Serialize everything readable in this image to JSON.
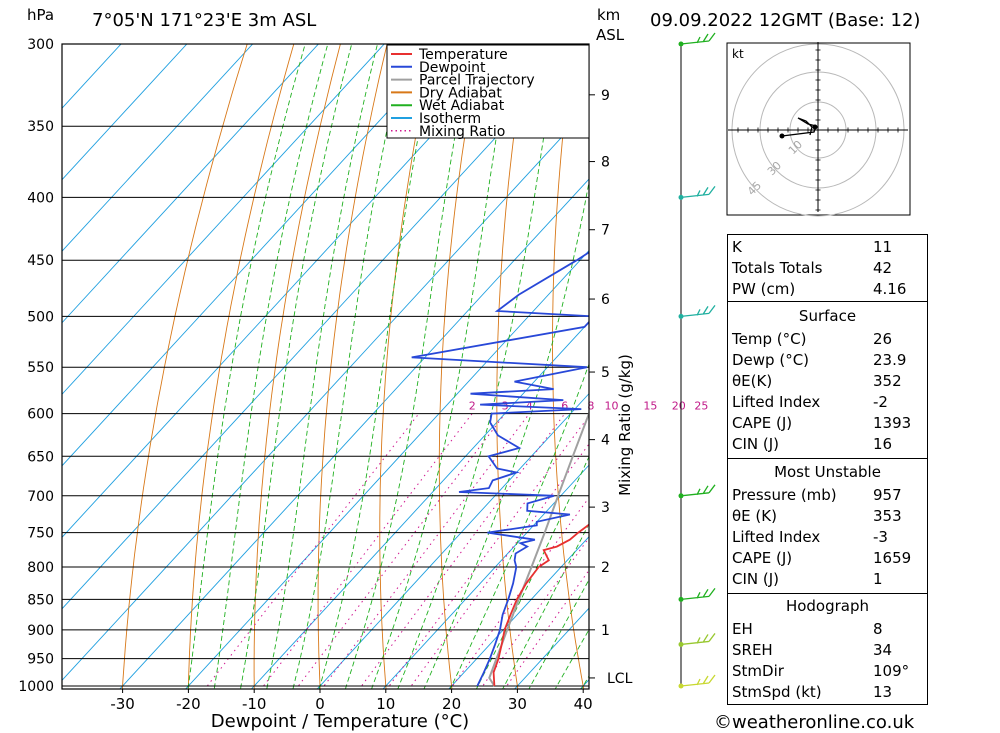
{
  "header": {
    "hpa_label": "hPa",
    "location": "7°05'N  171°23'E  3m  ASL",
    "km_label": "km",
    "asl_label": "ASL",
    "datetime": "09.09.2022  12GMT  (Base: 12)"
  },
  "chart_data": {
    "type": "skew-t",
    "xlabel": "Dewpoint / Temperature (°C)",
    "ylabel_right": "Mixing Ratio (g/kg)",
    "pressure_ticks": [
      300,
      350,
      400,
      450,
      500,
      550,
      600,
      650,
      700,
      750,
      800,
      850,
      900,
      950,
      1000
    ],
    "temperature_ticks": [
      -30,
      -20,
      -10,
      0,
      10,
      20,
      30,
      40
    ],
    "xlim": [
      -40,
      40
    ],
    "ylim": [
      1000,
      300
    ],
    "km_ticks": [
      {
        "label": "9",
        "p": 330
      },
      {
        "label": "8",
        "p": 374
      },
      {
        "label": "7",
        "p": 425
      },
      {
        "label": "6",
        "p": 484
      },
      {
        "label": "5",
        "p": 555
      },
      {
        "label": "4",
        "p": 630
      },
      {
        "label": "3",
        "p": 715
      },
      {
        "label": "2",
        "p": 800
      },
      {
        "label": "1",
        "p": 900
      },
      {
        "label": "LCL",
        "p": 985
      }
    ],
    "mixing_ratio_labels": [
      "2",
      "3",
      "4",
      "6",
      "8",
      "10",
      "15",
      "20",
      "25"
    ],
    "mixing_ratios": [
      1,
      2,
      3,
      4,
      6,
      8,
      10,
      15,
      20,
      25
    ],
    "legend": [
      {
        "name": "Temperature",
        "color": "#e83030",
        "style": "solid"
      },
      {
        "name": "Dewpoint",
        "color": "#2848d8",
        "style": "solid"
      },
      {
        "name": "Parcel Trajectory",
        "color": "#a0a0a0",
        "style": "solid"
      },
      {
        "name": "Dry Adiabat",
        "color": "#d87818",
        "style": "solid"
      },
      {
        "name": "Wet Adiabat",
        "color": "#20b020",
        "style": "solid"
      },
      {
        "name": "Isotherm",
        "color": "#20a0e0",
        "style": "solid"
      },
      {
        "name": "Mixing Ratio",
        "color": "#d01890",
        "style": "dotted"
      }
    ],
    "temperature": [
      [
        1000,
        26.5
      ],
      [
        975,
        24.5
      ],
      [
        950,
        23.3
      ],
      [
        925,
        21.8
      ],
      [
        900,
        20.2
      ],
      [
        875,
        19.0
      ],
      [
        850,
        17.8
      ],
      [
        825,
        17.0
      ],
      [
        800,
        16.6
      ],
      [
        790,
        17.2
      ],
      [
        775,
        15.0
      ],
      [
        770,
        16.5
      ],
      [
        760,
        17.5
      ],
      [
        750,
        17.8
      ],
      [
        735,
        18.5
      ],
      [
        725,
        18.0
      ],
      [
        715,
        18.3
      ],
      [
        700,
        17.8
      ],
      [
        680,
        16.5
      ],
      [
        660,
        15.0
      ],
      [
        640,
        13.5
      ],
      [
        620,
        12.0
      ],
      [
        600,
        10.5
      ],
      [
        580,
        9.5
      ],
      [
        560,
        8.0
      ],
      [
        540,
        6.5
      ],
      [
        520,
        5.0
      ],
      [
        500,
        3.0
      ],
      [
        480,
        1.5
      ],
      [
        460,
        -1.0
      ],
      [
        440,
        -3.5
      ],
      [
        420,
        -6.0
      ],
      [
        400,
        -8.5
      ],
      [
        380,
        -10.5
      ],
      [
        360,
        -13.5
      ],
      [
        340,
        -17.0
      ],
      [
        320,
        -21.0
      ],
      [
        300,
        -24.5
      ]
    ],
    "dewpoint": [
      [
        1000,
        23.9
      ],
      [
        975,
        23.0
      ],
      [
        950,
        22.0
      ],
      [
        925,
        20.8
      ],
      [
        900,
        19.5
      ],
      [
        875,
        17.8
      ],
      [
        850,
        16.5
      ],
      [
        825,
        15.0
      ],
      [
        800,
        13.2
      ],
      [
        790,
        12.0
      ],
      [
        780,
        11.2
      ],
      [
        770,
        12.0
      ],
      [
        765,
        10.5
      ],
      [
        760,
        12.2
      ],
      [
        750,
        4.0
      ],
      [
        740,
        10.5
      ],
      [
        735,
        10.0
      ],
      [
        725,
        14.0
      ],
      [
        720,
        7.0
      ],
      [
        710,
        6.0
      ],
      [
        700,
        9.0
      ],
      [
        695,
        -6.0
      ],
      [
        690,
        -2.0
      ],
      [
        680,
        -2.5
      ],
      [
        670,
        0.0
      ],
      [
        665,
        -3.5
      ],
      [
        650,
        -6.5
      ],
      [
        640,
        -3.0
      ],
      [
        625,
        -8.0
      ],
      [
        610,
        -11.0
      ],
      [
        600,
        -12.0
      ],
      [
        595,
        1.0
      ],
      [
        590,
        -15.0
      ],
      [
        585,
        -3.0
      ],
      [
        578,
        -18.0
      ],
      [
        573,
        -6.0
      ],
      [
        565,
        -13.0
      ],
      [
        550,
        -4.0
      ],
      [
        540,
        -32.0
      ],
      [
        510,
        -10.0
      ],
      [
        500,
        -10.0
      ],
      [
        495,
        -25.5
      ],
      [
        480,
        -24.5
      ],
      [
        450,
        -20.5
      ],
      [
        420,
        -17.0
      ],
      [
        400,
        -25.5
      ],
      [
        395,
        -12.0
      ],
      [
        390,
        -24.0
      ],
      [
        370,
        -22.0
      ],
      [
        355,
        -36.0
      ],
      [
        345,
        -20.0
      ],
      [
        330,
        -12.5
      ],
      [
        315,
        -18.0
      ],
      [
        300,
        -18.0
      ]
    ],
    "parcel": [
      [
        1000,
        26.5
      ],
      [
        985,
        24.6
      ],
      [
        950,
        23.0
      ],
      [
        900,
        20.6
      ],
      [
        850,
        18.1
      ],
      [
        800,
        15.5
      ],
      [
        750,
        12.7
      ],
      [
        700,
        9.6
      ],
      [
        650,
        6.3
      ],
      [
        600,
        2.8
      ],
      [
        550,
        -1.0
      ],
      [
        500,
        -5.4
      ],
      [
        450,
        -10.6
      ],
      [
        400,
        -16.8
      ],
      [
        370,
        -21.0
      ]
    ],
    "wind_barbs": [
      {
        "p": 300,
        "color": "#20b020"
      },
      {
        "p": 400,
        "color": "#20b0a0"
      },
      {
        "p": 500,
        "color": "#20b0a0"
      },
      {
        "p": 700,
        "color": "#20b020"
      },
      {
        "p": 850,
        "color": "#20b020"
      },
      {
        "p": 925,
        "color": "#98c830"
      },
      {
        "p": 1000,
        "color": "#c8d830"
      }
    ],
    "hodograph": {
      "unit": "kt",
      "ring_labels": [
        "10",
        "30",
        "45"
      ]
    }
  },
  "indices": {
    "top": [
      {
        "label": "K",
        "value": "11"
      },
      {
        "label": "Totals Totals",
        "value": "42"
      },
      {
        "label": "PW (cm)",
        "value": "4.16"
      }
    ],
    "surface_title": "Surface",
    "surface": [
      {
        "label": "Temp (°C)",
        "value": "26"
      },
      {
        "label": "Dewp (°C)",
        "value": "23.9"
      },
      {
        "label": "θE(K)",
        "value": "352"
      },
      {
        "label": "Lifted Index",
        "value": "-2"
      },
      {
        "label": "CAPE (J)",
        "value": "1393"
      },
      {
        "label": "CIN (J)",
        "value": "16"
      }
    ],
    "mu_title": "Most Unstable",
    "mu": [
      {
        "label": "Pressure (mb)",
        "value": "957"
      },
      {
        "label": "θE (K)",
        "value": "353"
      },
      {
        "label": "Lifted Index",
        "value": "-3"
      },
      {
        "label": "CAPE (J)",
        "value": "1659"
      },
      {
        "label": "CIN (J)",
        "value": "1"
      }
    ],
    "hodo_title": "Hodograph",
    "hodo": [
      {
        "label": "EH",
        "value": "8"
      },
      {
        "label": "SREH",
        "value": "34"
      },
      {
        "label": "StmDir",
        "value": "109°"
      },
      {
        "label": "StmSpd (kt)",
        "value": "13"
      }
    ]
  },
  "footer": "©weatheronline.co.uk"
}
